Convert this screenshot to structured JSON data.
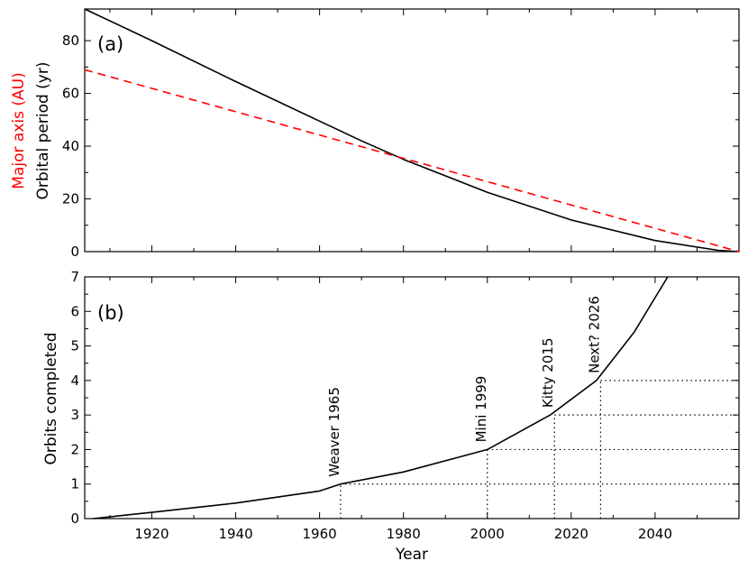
{
  "chart_data": [
    {
      "type": "line",
      "panel_label": "(a)",
      "title": "",
      "ylabel": "Orbital period (yr)",
      "ylabel_secondary": "Major axis (AU)",
      "ylabel_secondary_color": "#ff0000",
      "xlim": [
        1904,
        2060
      ],
      "ylim": [
        0,
        92
      ],
      "yticks": [
        0,
        20,
        40,
        60,
        80
      ],
      "xticks": [
        1920,
        1940,
        1960,
        1980,
        2000,
        2020,
        2040
      ],
      "series": [
        {
          "name": "Orbital period (yr)",
          "color": "#000000",
          "style": "solid",
          "x": [
            1904,
            1920,
            1940,
            1960,
            1970,
            1980,
            2000,
            2020,
            2040,
            2055,
            2060
          ],
          "y": [
            92,
            80,
            64.5,
            49.5,
            42,
            35,
            22.5,
            12,
            4.2,
            0.5,
            0
          ]
        },
        {
          "name": "Major axis (AU)",
          "color": "#ff0000",
          "style": "dashed",
          "x": [
            1904,
            2060
          ],
          "y": [
            69,
            0
          ]
        }
      ]
    },
    {
      "type": "line",
      "panel_label": "(b)",
      "title": "",
      "xlabel": "Year",
      "ylabel": "Orbits completed",
      "xlim": [
        1904,
        2060
      ],
      "ylim": [
        0,
        7
      ],
      "yticks": [
        0,
        1,
        2,
        3,
        4,
        5,
        6,
        7
      ],
      "xticks": [
        1920,
        1940,
        1960,
        1980,
        2000,
        2020,
        2040
      ],
      "xtick_labels": [
        "1920",
        "1940",
        "1960",
        "1980",
        "2000",
        "2020",
        "2040"
      ],
      "series": [
        {
          "name": "Orbits completed",
          "color": "#000000",
          "style": "solid",
          "x": [
            1906,
            1920,
            1940,
            1960,
            1965,
            1980,
            2000,
            2015,
            2026,
            2035,
            2040,
            2043
          ],
          "y": [
            0,
            0.18,
            0.45,
            0.8,
            1,
            1.35,
            2,
            3,
            4,
            5.4,
            6.4,
            7
          ]
        }
      ],
      "annotations": [
        {
          "label": "Weaver 1965",
          "year": 1965,
          "orbit": 1
        },
        {
          "label": "Mini 1999",
          "year": 2000,
          "orbit": 2
        },
        {
          "label": "Kitty 2015",
          "year": 2016,
          "orbit": 3
        },
        {
          "label": "Next? 2026",
          "year": 2027,
          "orbit": 4
        }
      ]
    }
  ]
}
